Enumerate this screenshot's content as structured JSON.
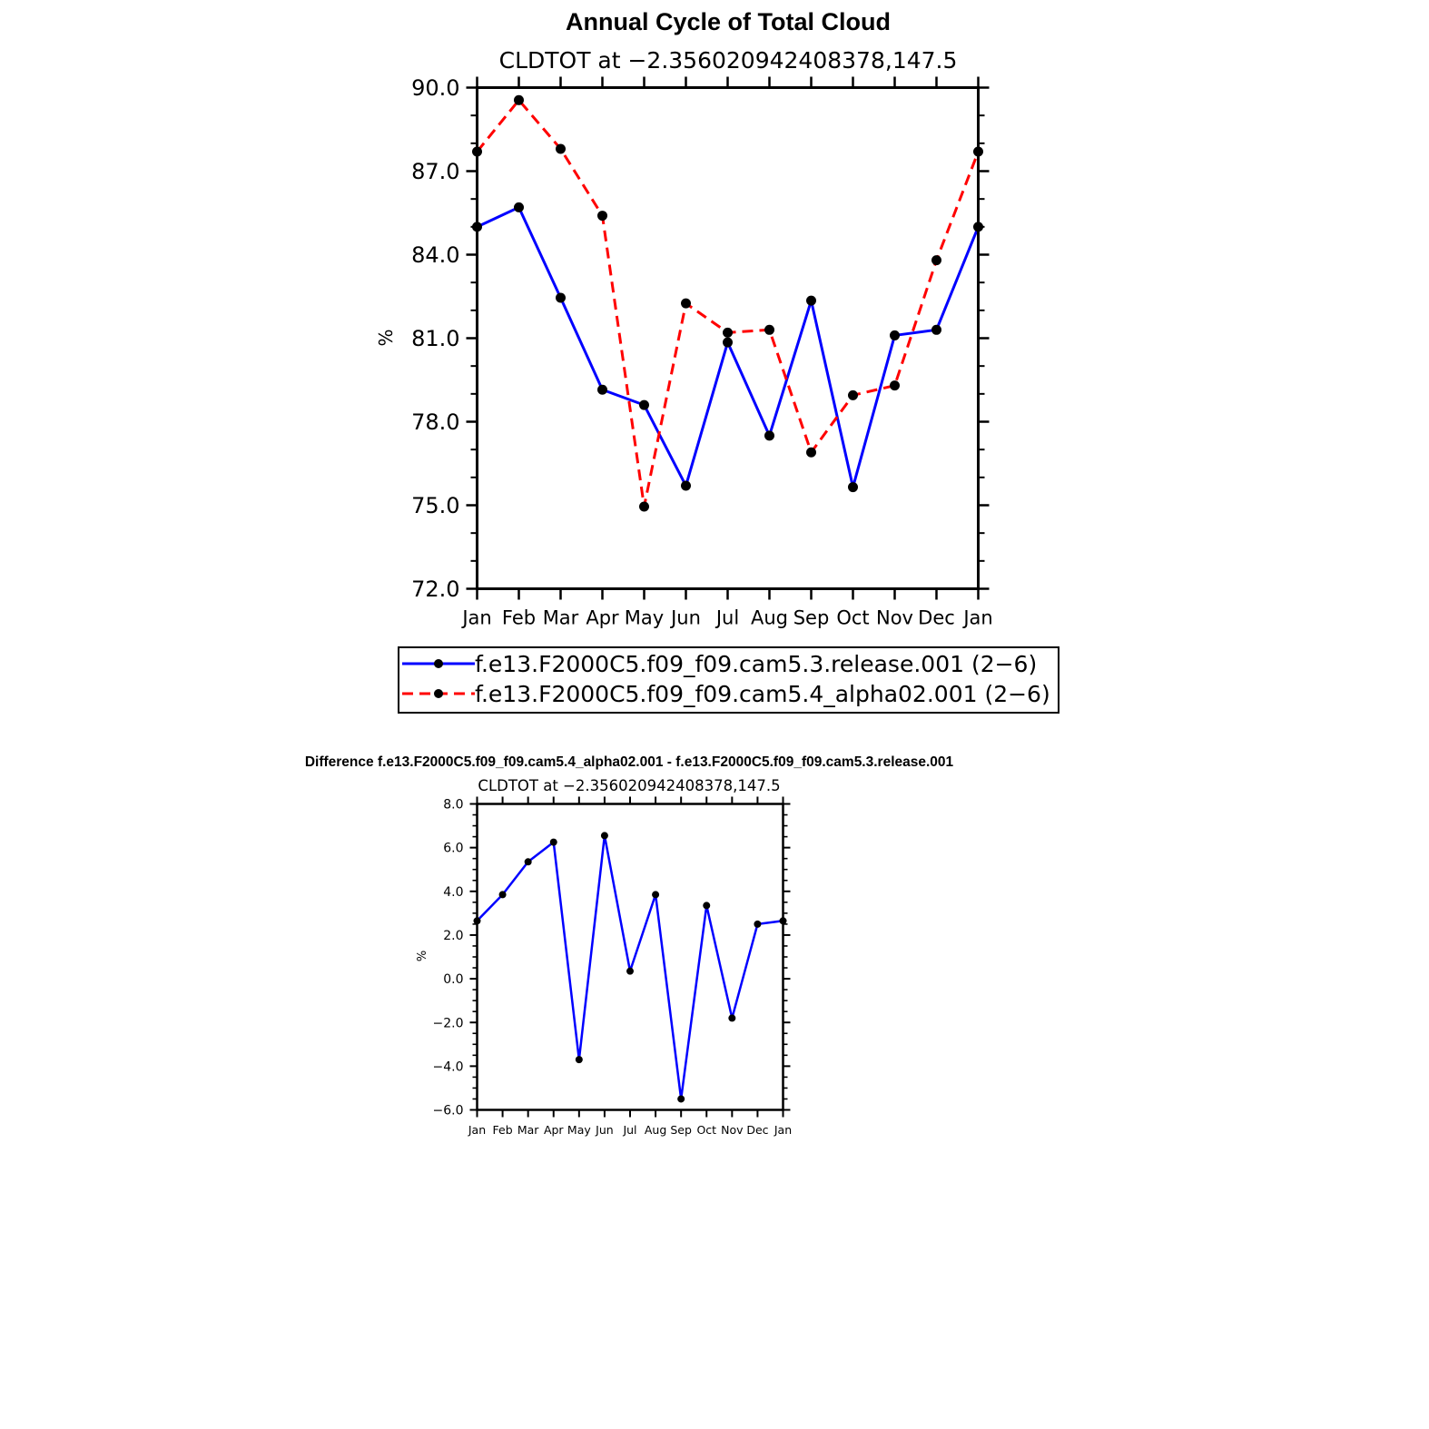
{
  "chart_data": [
    {
      "type": "line",
      "title": "Annual Cycle of Total Cloud",
      "subtitle": "CLDTOT at −2.356020942408378,147.5",
      "xlabel": "",
      "ylabel": "%",
      "categories": [
        "Jan",
        "Feb",
        "Mar",
        "Apr",
        "May",
        "Jun",
        "Jul",
        "Aug",
        "Sep",
        "Oct",
        "Nov",
        "Dec",
        "Jan"
      ],
      "ylim": [
        72.0,
        90.0
      ],
      "yticks": [
        "72.0",
        "75.0",
        "78.0",
        "81.0",
        "84.0",
        "87.0",
        "90.0"
      ],
      "grid": false,
      "legend_position": "bottom",
      "series": [
        {
          "name": "f.e13.F2000C5.f09_f09.cam5.3.release.001 (2−6)",
          "color": "#0000ff",
          "dash": "solid",
          "values": [
            85.0,
            85.7,
            82.45,
            79.15,
            78.6,
            75.7,
            80.85,
            77.5,
            82.35,
            75.65,
            81.1,
            81.3,
            85.0
          ]
        },
        {
          "name": "f.e13.F2000C5.f09_f09.cam5.4_alpha02.001 (2−6)",
          "color": "#ff0000",
          "dash": "dashed",
          "values": [
            87.7,
            89.55,
            87.8,
            85.4,
            74.95,
            82.25,
            81.2,
            81.3,
            76.9,
            78.95,
            79.3,
            83.8,
            87.7
          ]
        }
      ]
    },
    {
      "type": "line",
      "title": "Difference f.e13.F2000C5.f09_f09.cam5.4_alpha02.001 - f.e13.F2000C5.f09_f09.cam5.3.release.001",
      "subtitle": "CLDTOT at −2.356020942408378,147.5",
      "xlabel": "",
      "ylabel": "%",
      "categories": [
        "Jan",
        "Feb",
        "Mar",
        "Apr",
        "May",
        "Jun",
        "Jul",
        "Aug",
        "Sep",
        "Oct",
        "Nov",
        "Dec",
        "Jan"
      ],
      "ylim": [
        -6.0,
        8.0
      ],
      "yticks": [
        "−6.0",
        "−4.0",
        "−2.0",
        "0.0",
        "2.0",
        "4.0",
        "6.0",
        "8.0"
      ],
      "grid": false,
      "series": [
        {
          "name": "Difference",
          "color": "#0000ff",
          "dash": "solid",
          "values": [
            2.65,
            3.85,
            5.35,
            6.25,
            -3.7,
            6.55,
            0.35,
            3.85,
            -5.5,
            3.35,
            -1.8,
            2.5,
            2.65
          ]
        }
      ]
    }
  ]
}
